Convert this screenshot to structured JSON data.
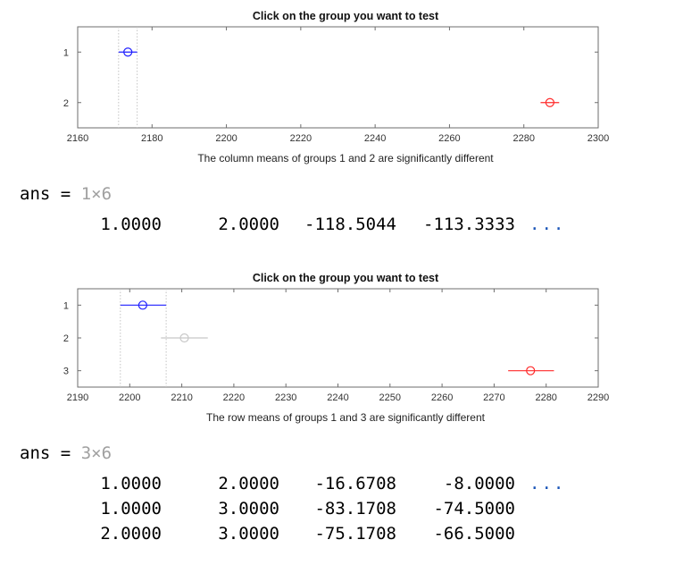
{
  "figure1": {
    "title": "Click on the group you want to test",
    "xlabel": "The column means of groups 1 and 2 are significantly different",
    "xticks": [
      "2160",
      "2180",
      "2200",
      "2220",
      "2240",
      "2260",
      "2280",
      "2300"
    ],
    "yticks": [
      "1",
      "2"
    ]
  },
  "output1": {
    "var": "ans",
    "eq": "=",
    "size": "1×6",
    "rows": [
      [
        "1.0000",
        "2.0000",
        "-118.5044",
        "-113.3333"
      ]
    ],
    "ellipsis": "..."
  },
  "figure2": {
    "title": "Click on the group you want to test",
    "xlabel": "The row means of groups 1 and 3 are significantly different",
    "xticks": [
      "2190",
      "2200",
      "2210",
      "2220",
      "2230",
      "2240",
      "2250",
      "2260",
      "2270",
      "2280",
      "2290"
    ],
    "yticks": [
      "1",
      "2",
      "3"
    ]
  },
  "output2": {
    "var": "ans",
    "eq": "=",
    "size": "3×6",
    "rows": [
      [
        "1.0000",
        "2.0000",
        "-16.6708",
        "-8.0000"
      ],
      [
        "1.0000",
        "3.0000",
        "-83.1708",
        "-74.5000"
      ],
      [
        "2.0000",
        "3.0000",
        "-75.1708",
        "-66.5000"
      ]
    ],
    "ellipsis": "..."
  },
  "colors": {
    "selected": "#1f1fff",
    "significant": "#ff2a2a",
    "neutral": "#c8c8c8",
    "ellipsis": "#1a55b8"
  },
  "chart_data": [
    {
      "type": "scatter",
      "title": "Click on the group you want to test",
      "xlabel": "The column means of groups 1 and 2 are significantly different",
      "xlim": [
        2160,
        2300
      ],
      "groups": [
        {
          "group": 1,
          "mean": 2173.5,
          "ci": [
            2171,
            2176
          ],
          "status": "selected"
        },
        {
          "group": 2,
          "mean": 2287,
          "ci": [
            2284.5,
            2289.5
          ],
          "status": "significant"
        }
      ],
      "guide_lines": [
        2171,
        2176
      ]
    },
    {
      "type": "scatter",
      "title": "Click on the group you want to test",
      "xlabel": "The row means of groups 1 and 3 are significantly different",
      "xlim": [
        2190,
        2290
      ],
      "groups": [
        {
          "group": 1,
          "mean": 2202.5,
          "ci": [
            2198.2,
            2207
          ],
          "status": "selected"
        },
        {
          "group": 2,
          "mean": 2210.5,
          "ci": [
            2206,
            2215
          ],
          "status": "neutral"
        },
        {
          "group": 3,
          "mean": 2277,
          "ci": [
            2272.7,
            2281.5
          ],
          "status": "significant"
        }
      ],
      "guide_lines": [
        2198.2,
        2207
      ]
    }
  ]
}
